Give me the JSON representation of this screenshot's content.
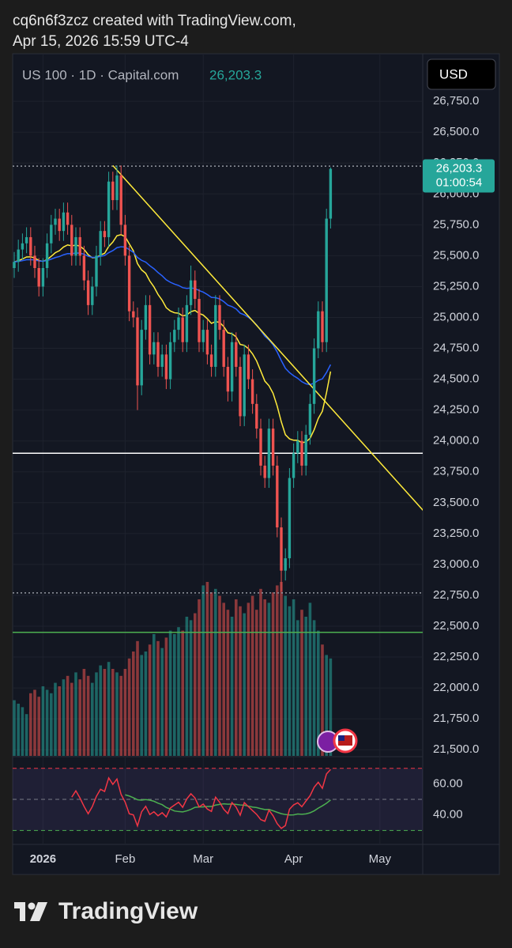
{
  "header": {
    "credit": "cq6n6f3zcz created with TradingView.com,",
    "timestamp": "Apr 15, 2026 15:59 UTC-4"
  },
  "footer": {
    "brand": "TradingView"
  },
  "chart_data": {
    "type": "candlestick",
    "symbol": "US 100 · 1D · Capital.com",
    "last_price_label": "26,203.3",
    "countdown": "01:00:54",
    "currency": "USD",
    "categories": [
      null,
      null,
      null,
      null,
      null,
      null,
      null,
      "2026",
      null,
      null,
      null,
      null,
      null,
      null,
      null,
      null,
      null,
      null,
      null,
      null,
      null,
      null,
      null,
      null,
      null,
      null,
      null,
      "Feb",
      null,
      null,
      null,
      null,
      null,
      null,
      null,
      null,
      null,
      null,
      null,
      null,
      null,
      null,
      null,
      null,
      null,
      null,
      "Mar",
      null,
      null,
      null,
      null,
      null,
      null,
      null,
      null,
      null,
      null,
      null,
      null,
      null,
      null,
      null,
      null,
      null,
      null,
      null,
      null,
      null,
      "Apr",
      null,
      null,
      null,
      null,
      null,
      null,
      null,
      null,
      null,
      null,
      null,
      null,
      null,
      null,
      null,
      null,
      null,
      null,
      null,
      null,
      "May"
    ],
    "open": [
      25400,
      25450,
      25550,
      25600,
      25650,
      25500,
      25400,
      25250,
      25400,
      25600,
      25750,
      25800,
      25700,
      25850,
      25750,
      25500,
      25650,
      25500,
      25300,
      25100,
      25250,
      25500,
      25700,
      25650,
      26100,
      25950,
      26150,
      25750,
      25500,
      25050,
      25000,
      24450,
      24900,
      25100,
      24700,
      24800,
      24600,
      24700,
      24500,
      24800,
      24900,
      25000,
      24800,
      25100,
      25300,
      25150,
      24800,
      24900,
      24700,
      24600,
      25100,
      24900,
      24600,
      24400,
      24800,
      24600,
      24200,
      24700,
      24500,
      24300,
      24100,
      23800,
      23700,
      24100,
      23800,
      23300,
      22950,
      23050,
      23700,
      23900,
      24000,
      23800,
      24050,
      24300,
      24750,
      25050,
      24800,
      25800,
      null,
      null,
      null,
      null,
      null,
      null,
      null,
      null,
      null,
      null,
      null,
      null
    ],
    "high": [
      25530,
      25630,
      25680,
      25730,
      25730,
      25580,
      25480,
      25480,
      25680,
      25830,
      25880,
      25880,
      25930,
      25930,
      25830,
      25730,
      25730,
      25580,
      25380,
      25330,
      25580,
      25780,
      25780,
      26180,
      26180,
      26230,
      26230,
      25830,
      25580,
      25130,
      25080,
      24980,
      25180,
      25180,
      24880,
      24880,
      24780,
      24780,
      24880,
      24980,
      25080,
      25080,
      25180,
      25420,
      25380,
      25230,
      24980,
      24980,
      24780,
      25180,
      25180,
      24980,
      24680,
      24880,
      24880,
      24680,
      24780,
      24780,
      24580,
      24380,
      24180,
      23880,
      24180,
      24180,
      23880,
      23380,
      23130,
      23780,
      23980,
      24080,
      24080,
      24130,
      24380,
      24830,
      25130,
      25130,
      25880,
      26215,
      null,
      null,
      null,
      null,
      null,
      null,
      null,
      null,
      null,
      null,
      null,
      null
    ],
    "low": [
      25320,
      25370,
      25470,
      25520,
      25420,
      25320,
      25170,
      25170,
      25320,
      25520,
      25670,
      25620,
      25620,
      25670,
      25420,
      25420,
      25420,
      25220,
      25020,
      25020,
      25170,
      25420,
      25570,
      25570,
      25870,
      25870,
      25670,
      25420,
      24970,
      24920,
      24250,
      24370,
      24820,
      24620,
      24620,
      24520,
      24520,
      24420,
      24420,
      24720,
      24820,
      24720,
      24720,
      25020,
      25070,
      24720,
      24720,
      24620,
      24520,
      24520,
      24820,
      24520,
      24320,
      24320,
      24520,
      24120,
      24120,
      24420,
      24220,
      24020,
      23720,
      23620,
      23620,
      23720,
      23220,
      22780,
      22870,
      22970,
      23620,
      23820,
      23720,
      23720,
      23970,
      24220,
      24670,
      24720,
      24720,
      25720,
      null,
      null,
      null,
      null,
      null,
      null,
      null,
      null,
      null,
      null,
      null,
      null
    ],
    "close": [
      25450,
      25550,
      25600,
      25650,
      25500,
      25400,
      25250,
      25400,
      25600,
      25750,
      25800,
      25700,
      25850,
      25750,
      25500,
      25650,
      25500,
      25300,
      25100,
      25250,
      25500,
      25700,
      25650,
      26100,
      25950,
      26150,
      25750,
      25500,
      25050,
      25000,
      24450,
      24900,
      25100,
      24700,
      24800,
      24600,
      24700,
      24500,
      24800,
      24900,
      25000,
      24800,
      25100,
      25300,
      25150,
      24800,
      24900,
      24700,
      24600,
      25100,
      24900,
      24600,
      24400,
      24800,
      24600,
      24200,
      24700,
      24500,
      24300,
      24100,
      23800,
      23700,
      24100,
      23800,
      23300,
      22950,
      23050,
      23700,
      23900,
      24000,
      23800,
      24050,
      24300,
      24750,
      25050,
      24800,
      25800,
      26203.3,
      null,
      null,
      null,
      null,
      null,
      null,
      null,
      null,
      null,
      null,
      null,
      null
    ],
    "volume": [
      32,
      30,
      28,
      24,
      36,
      38,
      34,
      40,
      38,
      36,
      42,
      40,
      44,
      46,
      42,
      48,
      44,
      50,
      46,
      42,
      48,
      52,
      50,
      54,
      50,
      48,
      46,
      50,
      56,
      60,
      66,
      58,
      60,
      64,
      70,
      66,
      62,
      68,
      72,
      70,
      74,
      72,
      80,
      78,
      82,
      90,
      98,
      100,
      94,
      96,
      92,
      88,
      84,
      80,
      90,
      86,
      82,
      88,
      92,
      84,
      96,
      90,
      88,
      94,
      98,
      100,
      92,
      86,
      90,
      78,
      84,
      80,
      88,
      78,
      72,
      64,
      58,
      56,
      null,
      null,
      null,
      null,
      null,
      null,
      null,
      null,
      null,
      null,
      null,
      null
    ],
    "volume_lim": [
      0,
      100
    ],
    "colors": {
      "up": "#26a69a",
      "down": "#ef5350"
    },
    "ylim": [
      21450,
      27135
    ],
    "yticks": [
      {
        "value": 21500,
        "label": "21,500.0"
      },
      {
        "value": 21750,
        "label": "21,750.0"
      },
      {
        "value": 22000,
        "label": "22,000.0"
      },
      {
        "value": 22250,
        "label": "22,250.0"
      },
      {
        "value": 22500,
        "label": "22,500.0"
      },
      {
        "value": 22750,
        "label": "22,750.0"
      },
      {
        "value": 23000,
        "label": "23,000.0"
      },
      {
        "value": 23250,
        "label": "23,250.0"
      },
      {
        "value": 23500,
        "label": "23,500.0"
      },
      {
        "value": 23750,
        "label": "23,750.0"
      },
      {
        "value": 24000,
        "label": "24,000.0"
      },
      {
        "value": 24250,
        "label": "24,250.0"
      },
      {
        "value": 24500,
        "label": "24,500.0"
      },
      {
        "value": 24750,
        "label": "24,750.0"
      },
      {
        "value": 25000,
        "label": "25,000.0"
      },
      {
        "value": 25250,
        "label": "25,250.0"
      },
      {
        "value": 25500,
        "label": "25,500.0"
      },
      {
        "value": 25750,
        "label": "25,750.0"
      },
      {
        "value": 26000,
        "label": "26,000.0"
      },
      {
        "value": 26250,
        "label": "26,250.0"
      },
      {
        "value": 26500,
        "label": "26,500.0"
      },
      {
        "value": 26750,
        "label": "26,750.0"
      }
    ],
    "grid": true,
    "levels": [
      {
        "value": 23900,
        "color": "#ffffff",
        "style": "solid"
      },
      {
        "value": 22450,
        "color": "#4caf50",
        "style": "solid"
      },
      {
        "value": 22770,
        "color": "#9598a1",
        "style": "dotted"
      },
      {
        "value": 26225,
        "color": "#9598a1",
        "style": "dotted"
      }
    ],
    "trendline": {
      "x": [
        24,
        100
      ],
      "y": [
        26230,
        23420
      ],
      "color": "#ffeb3b"
    },
    "moving_averages": [
      {
        "period": 20,
        "color": "#ffeb3b"
      },
      {
        "period": 50,
        "color": "#2962ff"
      }
    ],
    "rsi": {
      "period": 14,
      "color": "#f23645",
      "signal_period": 14,
      "signal_color": "#4caf50",
      "ylim": [
        21,
        77
      ],
      "yticks": [
        {
          "value": 40,
          "label": "40.00"
        },
        {
          "value": 60,
          "label": "60.00"
        }
      ],
      "bands": [
        30,
        50,
        70
      ]
    }
  }
}
